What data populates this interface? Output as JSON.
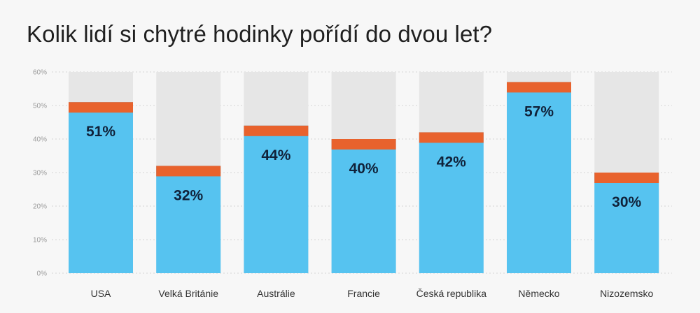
{
  "chart_data": {
    "type": "bar",
    "title": "Kolik lidí si chytré hodinky pořídí do dvou let?",
    "categories": [
      "USA",
      "Velká Británie",
      "Austrálie",
      "Francie",
      "Česká republika",
      "Německo",
      "Nizozemsko"
    ],
    "values": [
      51,
      32,
      44,
      40,
      42,
      57,
      30
    ],
    "data_labels": [
      "51%",
      "32%",
      "44%",
      "40%",
      "42%",
      "57%",
      "30%"
    ],
    "ylim": [
      0,
      60
    ],
    "yticks": [
      0,
      10,
      20,
      30,
      40,
      50,
      60
    ],
    "ytick_labels": [
      "0%",
      "10%",
      "20%",
      "30%",
      "40%",
      "50%",
      "60%"
    ],
    "grid": true,
    "colors": {
      "bar": "#56c3f0",
      "bar_top": "#e8622d",
      "background_bar": "#e6e6e6",
      "data_label": "#10223a"
    }
  }
}
